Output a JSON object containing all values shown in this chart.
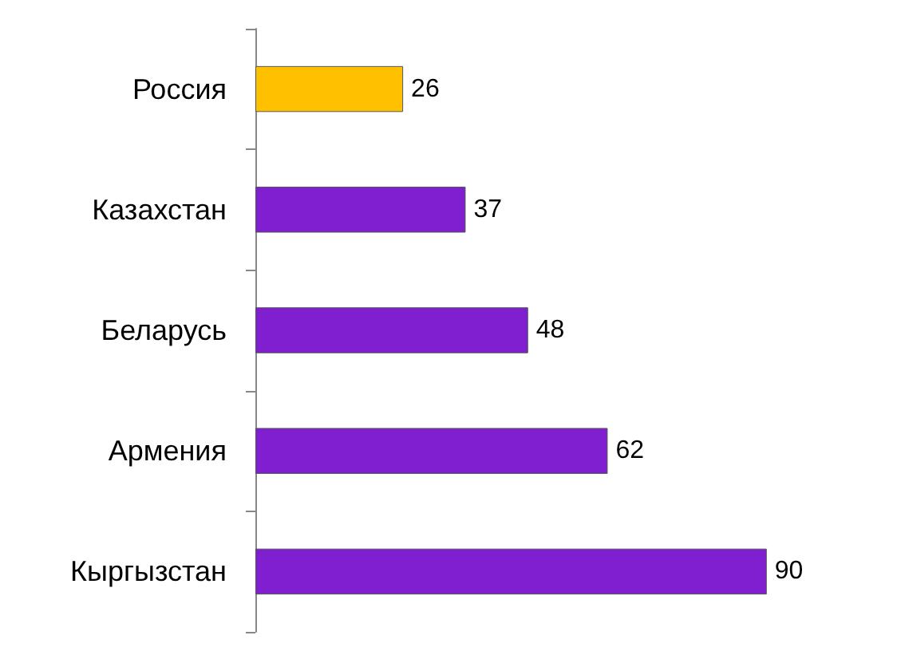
{
  "chart_data": {
    "type": "bar",
    "orientation": "horizontal",
    "categories": [
      "Россия",
      "Казахстан",
      "Беларусь",
      "Армения",
      "Кыргызстан"
    ],
    "values": [
      26,
      37,
      48,
      62,
      90
    ],
    "colors": [
      "#ffc000",
      "#7f1fd0",
      "#7f1fd0",
      "#7f1fd0",
      "#7f1fd0"
    ],
    "data_labels": true
  }
}
